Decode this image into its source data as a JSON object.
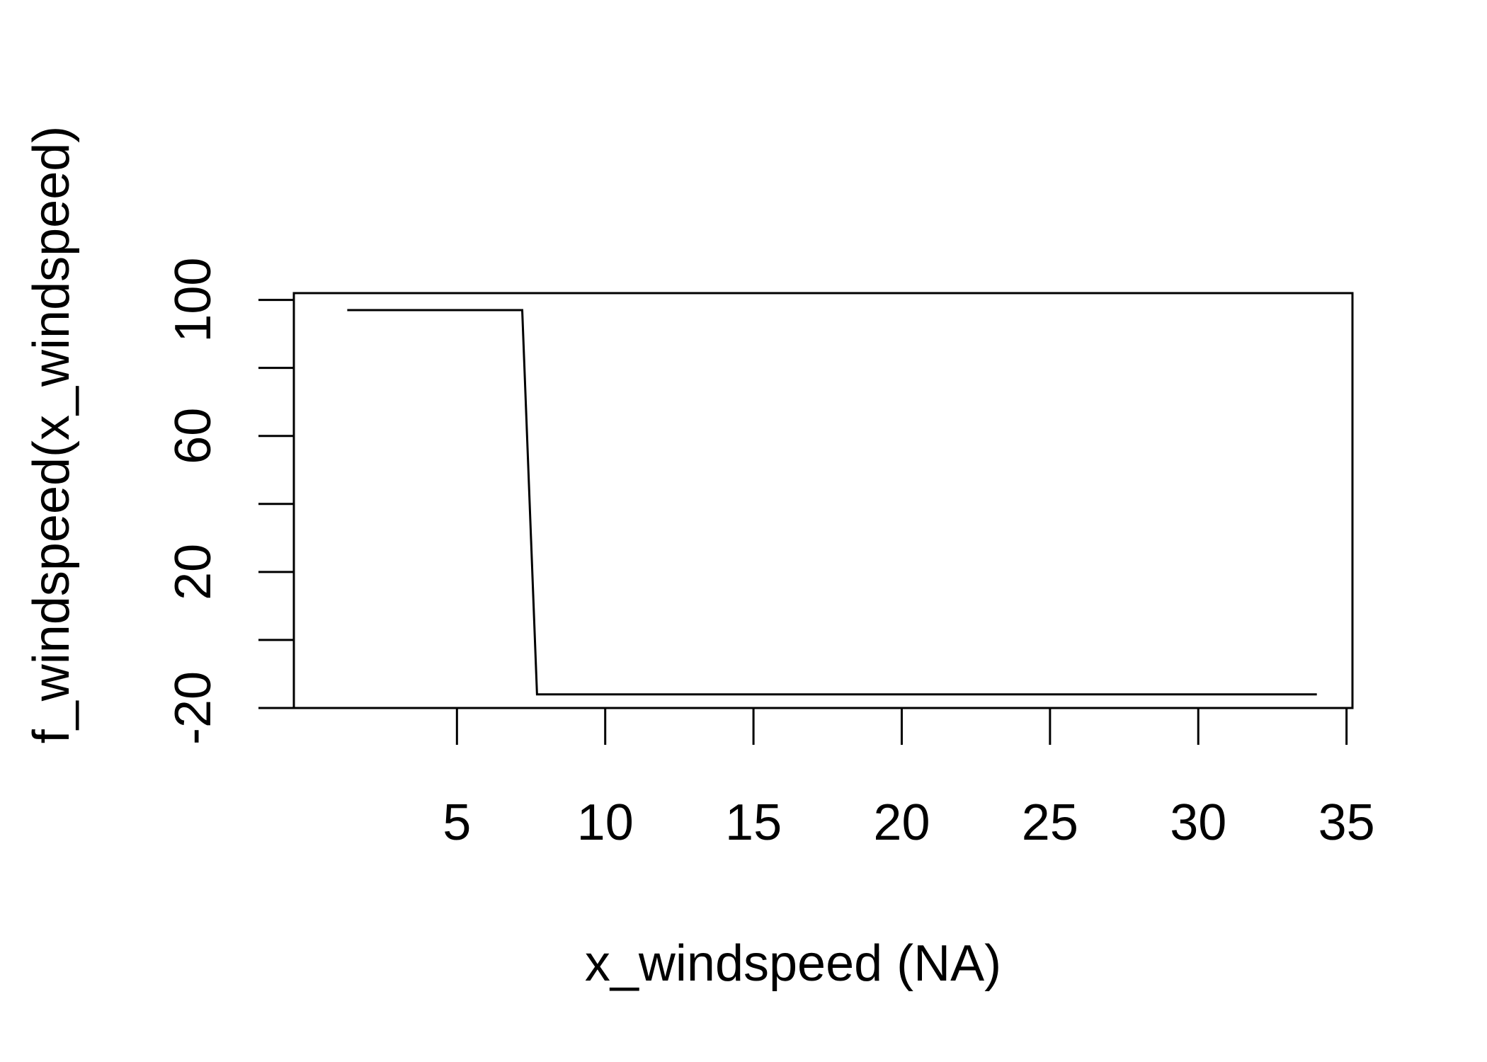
{
  "chart_data": {
    "type": "line",
    "title": "",
    "xlabel": "x_windspeed (NA)",
    "ylabel": "f_windspeed(x_windspeed)",
    "xlim": [
      -0.5,
      35.2
    ],
    "ylim": [
      -20,
      102
    ],
    "xticks": [
      5,
      10,
      15,
      20,
      25,
      30,
      35
    ],
    "yticks": [
      -20,
      0,
      20,
      40,
      60,
      80,
      100
    ],
    "ytick_labels_shown": [
      -20,
      20,
      60,
      100
    ],
    "grid": false,
    "legend": "none",
    "series": [
      {
        "x": [
          1.3,
          7.2,
          7.7,
          34.0
        ],
        "y": [
          97,
          97,
          -16,
          -16
        ]
      }
    ]
  },
  "colors": {
    "line": "#000000",
    "axis": "#000000",
    "background": "#ffffff"
  }
}
